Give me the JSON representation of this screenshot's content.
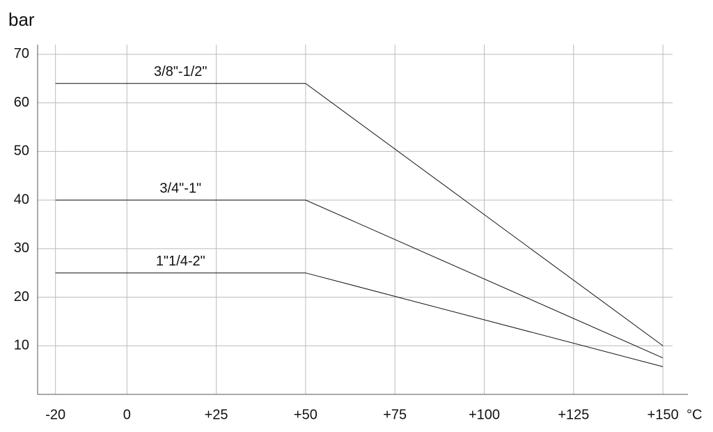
{
  "chart_data": {
    "type": "line",
    "y_label": "bar",
    "x_label": "°C",
    "x": [
      -20,
      50,
      150
    ],
    "series": [
      {
        "name": "3/8\"-1/2\"",
        "color": "#111111",
        "values": [
          64,
          64,
          10
        ]
      },
      {
        "name": "3/4\"-1\"",
        "color": "#111111",
        "values": [
          40,
          40,
          7.5
        ]
      },
      {
        "name": "1\"1/4-2\"",
        "color": "#111111",
        "values": [
          25,
          25,
          5.7
        ]
      }
    ],
    "xlim": [
      -25,
      157
    ],
    "xticks": [
      -20,
      0,
      {
        "value": 25,
        "label": "+25"
      },
      {
        "value": 50,
        "label": "+50"
      },
      {
        "value": 75,
        "label": "+75"
      },
      {
        "value": 100,
        "label": "+100"
      },
      {
        "value": 125,
        "label": "+125"
      },
      {
        "value": 150,
        "label": "+150"
      }
    ],
    "ylim": [
      0,
      72
    ],
    "yticks": [
      10,
      20,
      30,
      40,
      50,
      60,
      70
    ],
    "grid": true
  }
}
